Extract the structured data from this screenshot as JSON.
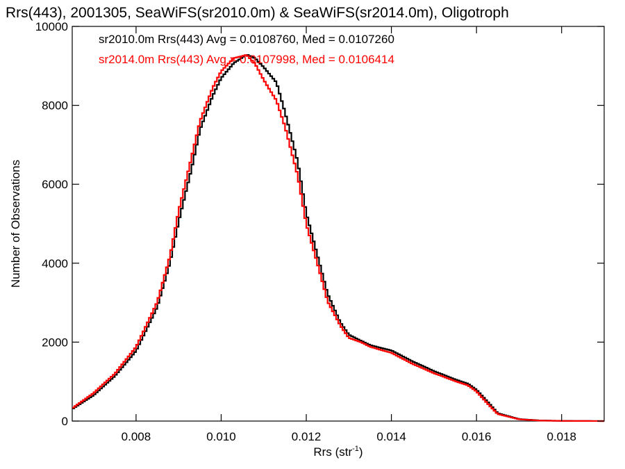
{
  "chart_data": {
    "type": "line",
    "title": "Rrs(443), 2001305, SeaWiFS(sr2010.0m) & SeaWiFS(sr2014.0m), Oligotroph",
    "xlabel": "Rrs (str",
    "xlabel_sup": "-1",
    "xlabel_close": ")",
    "ylabel": "Number of Observations",
    "xlim": [
      0.0065,
      0.019
    ],
    "ylim": [
      0,
      10000
    ],
    "x_ticks": [
      0.008,
      0.01,
      0.012,
      0.014,
      0.016,
      0.018
    ],
    "x_tick_labels": [
      "0.008",
      "0.010",
      "0.012",
      "0.014",
      "0.016",
      "0.018"
    ],
    "y_ticks": [
      0,
      2000,
      4000,
      6000,
      8000,
      10000
    ],
    "y_tick_labels": [
      "0",
      "2000",
      "4000",
      "6000",
      "8000",
      "10000"
    ],
    "grid": false,
    "step_style": true,
    "series": [
      {
        "color": "#000000",
        "annotation": "sr2010.0m Rrs(443) Avg = 0.0108760, Med = 0.0107260",
        "points": [
          [
            0.0065,
            300
          ],
          [
            0.007,
            650
          ],
          [
            0.0075,
            1150
          ],
          [
            0.008,
            1800
          ],
          [
            0.0085,
            2900
          ],
          [
            0.0088,
            4000
          ],
          [
            0.009,
            5000
          ],
          [
            0.0093,
            6300
          ],
          [
            0.0095,
            7300
          ],
          [
            0.0098,
            8200
          ],
          [
            0.01,
            8700
          ],
          [
            0.0103,
            9150
          ],
          [
            0.0106,
            9400
          ],
          [
            0.0108,
            9300
          ],
          [
            0.011,
            9050
          ],
          [
            0.0113,
            8600
          ],
          [
            0.0115,
            7800
          ],
          [
            0.0118,
            6500
          ],
          [
            0.012,
            5200
          ],
          [
            0.0123,
            4000
          ],
          [
            0.0125,
            3200
          ],
          [
            0.0128,
            2500
          ],
          [
            0.013,
            2200
          ],
          [
            0.0133,
            2050
          ],
          [
            0.0135,
            1950
          ],
          [
            0.014,
            1800
          ],
          [
            0.0145,
            1500
          ],
          [
            0.015,
            1250
          ],
          [
            0.0155,
            1050
          ],
          [
            0.0158,
            950
          ],
          [
            0.016,
            800
          ],
          [
            0.0163,
            450
          ],
          [
            0.0165,
            200
          ],
          [
            0.017,
            50
          ],
          [
            0.0175,
            15
          ],
          [
            0.018,
            5
          ],
          [
            0.019,
            0
          ]
        ]
      },
      {
        "color": "#ff0000",
        "annotation": "sr2014.0m Rrs(443) Avg = 0.0107998, Med = 0.0106414",
        "points": [
          [
            0.0065,
            320
          ],
          [
            0.007,
            700
          ],
          [
            0.0075,
            1200
          ],
          [
            0.008,
            1900
          ],
          [
            0.0085,
            3050
          ],
          [
            0.0088,
            4200
          ],
          [
            0.009,
            5300
          ],
          [
            0.0093,
            6600
          ],
          [
            0.0095,
            7500
          ],
          [
            0.0098,
            8350
          ],
          [
            0.01,
            8800
          ],
          [
            0.0103,
            9200
          ],
          [
            0.0106,
            9350
          ],
          [
            0.0108,
            9150
          ],
          [
            0.011,
            8750
          ],
          [
            0.0113,
            8200
          ],
          [
            0.0115,
            7500
          ],
          [
            0.0118,
            6200
          ],
          [
            0.012,
            4950
          ],
          [
            0.0123,
            3800
          ],
          [
            0.0125,
            3000
          ],
          [
            0.0128,
            2400
          ],
          [
            0.013,
            2100
          ],
          [
            0.0133,
            2000
          ],
          [
            0.0135,
            1900
          ],
          [
            0.014,
            1750
          ],
          [
            0.0145,
            1450
          ],
          [
            0.015,
            1200
          ],
          [
            0.0155,
            1000
          ],
          [
            0.0158,
            900
          ],
          [
            0.016,
            750
          ],
          [
            0.0163,
            400
          ],
          [
            0.0165,
            180
          ],
          [
            0.017,
            45
          ],
          [
            0.0175,
            12
          ],
          [
            0.018,
            4
          ],
          [
            0.019,
            0
          ]
        ]
      }
    ]
  }
}
